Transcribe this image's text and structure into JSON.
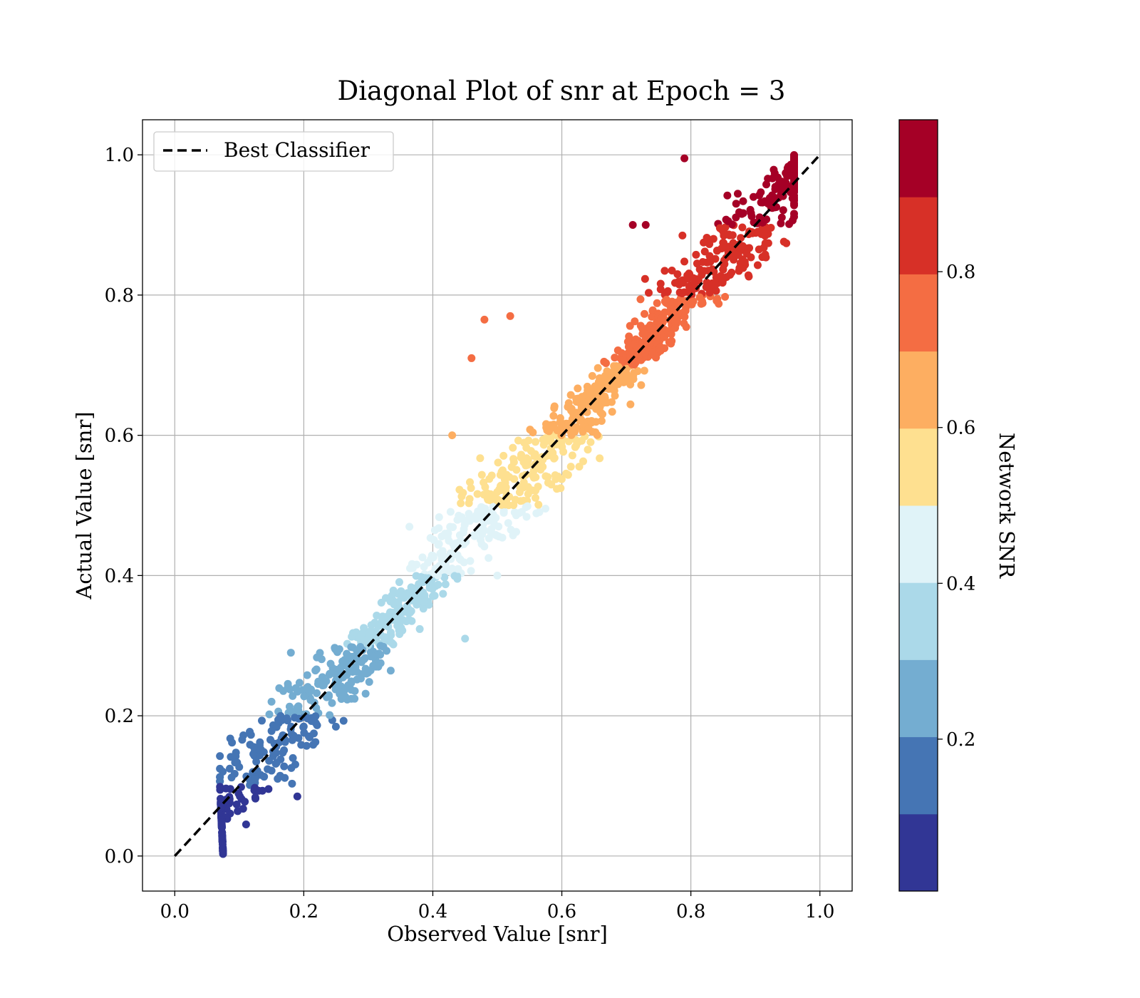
{
  "chart_data": {
    "type": "scatter",
    "title": "Diagonal Plot of snr at Epoch = 3",
    "xlabel": "Observed Value [snr]",
    "ylabel": "Actual Value [snr]",
    "xlim": [
      -0.05,
      1.05
    ],
    "ylim": [
      -0.05,
      1.05
    ],
    "x_ticks": [
      0.0,
      0.2,
      0.4,
      0.6,
      0.8,
      1.0
    ],
    "y_ticks": [
      0.0,
      0.2,
      0.4,
      0.6,
      0.8,
      1.0
    ],
    "x_tick_labels": [
      "0.0",
      "0.2",
      "0.4",
      "0.6",
      "0.8",
      "1.0"
    ],
    "y_tick_labels": [
      "0.0",
      "0.2",
      "0.4",
      "0.6",
      "0.8",
      "1.0"
    ],
    "grid": true,
    "legend": {
      "position": "top-left",
      "entries": [
        {
          "label": "Best Classifier",
          "style": "dashed-line",
          "color": "#000000"
        }
      ]
    },
    "reference_line": {
      "label": "Best Classifier",
      "x": [
        0.0,
        1.0
      ],
      "y": [
        0.0,
        1.0
      ],
      "style": "dashed",
      "color": "#000000"
    },
    "colorbar": {
      "label": "Network SNR",
      "range": [
        0.0,
        1.0
      ],
      "bins": 10,
      "colors": [
        "#313695",
        "#4575b4",
        "#74add1",
        "#abd9e9",
        "#e0f3f8",
        "#fee090",
        "#fdae61",
        "#f46d43",
        "#d73027",
        "#a50026"
      ],
      "ticks": [
        0.2,
        0.4,
        0.6,
        0.8
      ],
      "tick_labels": [
        "0.2",
        "0.4",
        "0.6",
        "0.8"
      ]
    },
    "scatter_pattern": {
      "relation": "actual approximately equals observed",
      "actual_range": [
        0.0,
        1.0
      ],
      "observed_min": 0.07,
      "observed_max": 0.96,
      "spread_std": 0.045,
      "point_count_approx": 1500
    },
    "highlights": [
      {
        "x": 0.79,
        "y": 0.995
      },
      {
        "x": 0.73,
        "y": 0.9
      },
      {
        "x": 0.71,
        "y": 0.9
      },
      {
        "x": 0.46,
        "y": 0.71
      },
      {
        "x": 0.52,
        "y": 0.77
      },
      {
        "x": 0.48,
        "y": 0.765
      },
      {
        "x": 0.19,
        "y": 0.085
      },
      {
        "x": 0.15,
        "y": 0.22
      },
      {
        "x": 0.45,
        "y": 0.31
      },
      {
        "x": 0.5,
        "y": 0.4
      },
      {
        "x": 0.43,
        "y": 0.6
      },
      {
        "x": 0.18,
        "y": 0.29
      }
    ]
  }
}
